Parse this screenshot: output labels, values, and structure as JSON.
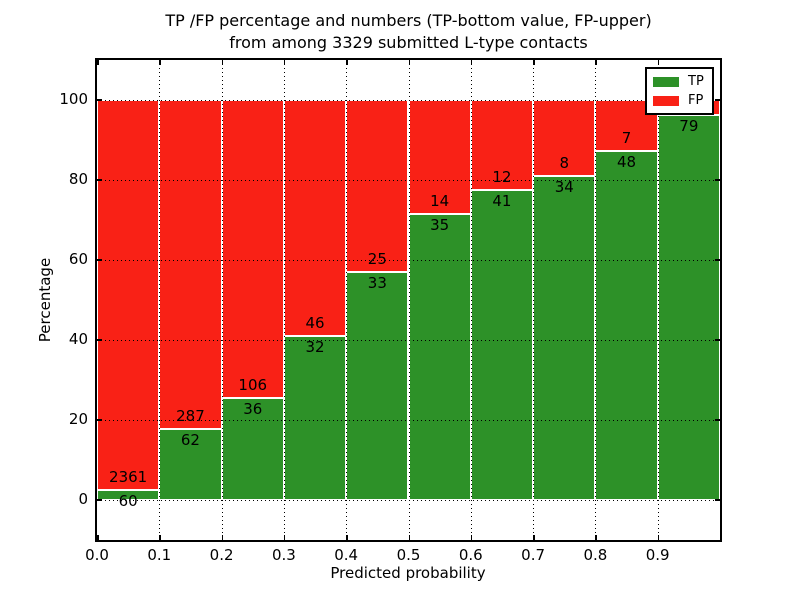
{
  "figure": {
    "title_line1": "TP /FP percentage and numbers (TP-bottom value, FP-upper)",
    "title_line2": "from among 3329 submitted L-type contacts",
    "xlabel": "Predicted probability",
    "ylabel": "Percentage"
  },
  "colors": {
    "tp_green": "#2d9128",
    "fp_red": "#f92116",
    "grid": "#000000",
    "background": "#ffffff",
    "spine": "#000000"
  },
  "legend": {
    "position": "upper right",
    "items": [
      {
        "label": "TP",
        "color_key": "tp_green"
      },
      {
        "label": "FP",
        "color_key": "fp_red"
      }
    ]
  },
  "chart_data": {
    "type": "bar",
    "stacked": true,
    "normalized": "each bin stacks to 100%",
    "title": "TP /FP percentage and numbers (TP-bottom value, FP-upper)\nfrom among 3329 submitted L-type contacts",
    "xlabel": "Predicted probability",
    "ylabel": "Percentage",
    "total_submitted": 3329,
    "xlim": [
      0.0,
      1.0
    ],
    "ylim": [
      -10,
      110
    ],
    "bin_width": 0.1,
    "bin_starts": [
      0.0,
      0.1,
      0.2,
      0.3,
      0.4,
      0.5,
      0.6,
      0.7,
      0.8,
      0.9
    ],
    "x_tick_labels": [
      "0.0",
      "0.1",
      "0.2",
      "0.3",
      "0.4",
      "0.5",
      "0.6",
      "0.7",
      "0.8",
      "0.9"
    ],
    "y_tick_values": [
      0,
      20,
      40,
      60,
      80,
      100
    ],
    "series": [
      {
        "name": "TP",
        "counts": [
          60,
          62,
          36,
          32,
          33,
          35,
          41,
          34,
          48,
          79
        ]
      },
      {
        "name": "FP",
        "counts": [
          2361,
          287,
          106,
          46,
          25,
          14,
          12,
          8,
          7,
          null
        ]
      }
    ],
    "tp_percent": [
      2.5,
      17.8,
      25.4,
      41.0,
      56.9,
      71.4,
      77.4,
      81.0,
      87.3,
      96.3
    ],
    "grid": "dotted, drawn over bars",
    "legend_position": "upper right",
    "notes": "FP count label of last bin hidden behind legend; red tops reach 100%"
  }
}
